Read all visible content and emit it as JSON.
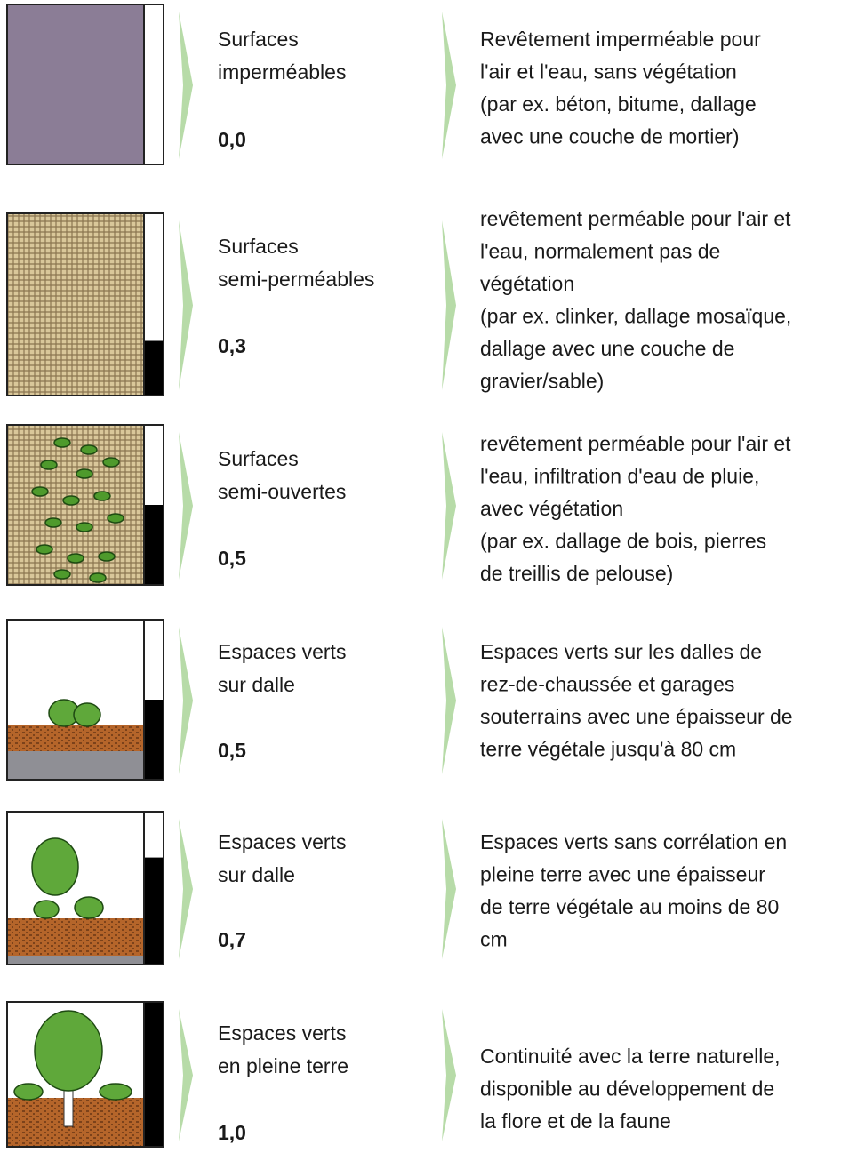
{
  "rows": [
    {
      "label": [
        "Surfaces",
        "imperméables"
      ],
      "coefficient": "0,0",
      "description": [
        "Revêtement imperméable pour",
        "l'air et l'eau, sans végétation",
        "(par ex. béton, bitume, dallage",
        "avec une couche de mortier)"
      ]
    },
    {
      "label": [
        "Surfaces",
        "semi-perméables"
      ],
      "coefficient": "0,3",
      "description": [
        "revêtement perméable pour l'air et",
        "l'eau, normalement pas de",
        "végétation",
        "(par ex. clinker, dallage mosaïque,",
        "dallage avec une couche de",
        "gravier/sable)"
      ]
    },
    {
      "label": [
        "Surfaces",
        "semi-ouvertes"
      ],
      "coefficient": "0,5",
      "description": [
        "revêtement perméable pour l'air et",
        "l'eau, infiltration d'eau de pluie,",
        "avec végétation",
        "(par ex. dallage de bois, pierres",
        "de treillis de pelouse)"
      ]
    },
    {
      "label": [
        "Espaces verts",
        "sur dalle"
      ],
      "coefficient": "0,5",
      "description": [
        "Espaces verts sur les dalles de",
        "rez-de-chaussée et garages",
        "souterrains avec une épaisseur de",
        "terre végétale jusqu'à 80 cm"
      ]
    },
    {
      "label": [
        "Espaces verts",
        "sur dalle"
      ],
      "coefficient": "0,7",
      "description": [
        "Espaces verts sans corrélation en",
        "pleine terre avec une épaisseur",
        "de terre végétale au moins de 80",
        "cm"
      ]
    },
    {
      "label": [
        "Espaces verts",
        "en pleine terre"
      ],
      "coefficient": "1,0",
      "description": [
        "Continuité avec la terre naturelle,",
        "disponible au développement de",
        "la flore et de la faune"
      ]
    }
  ]
}
